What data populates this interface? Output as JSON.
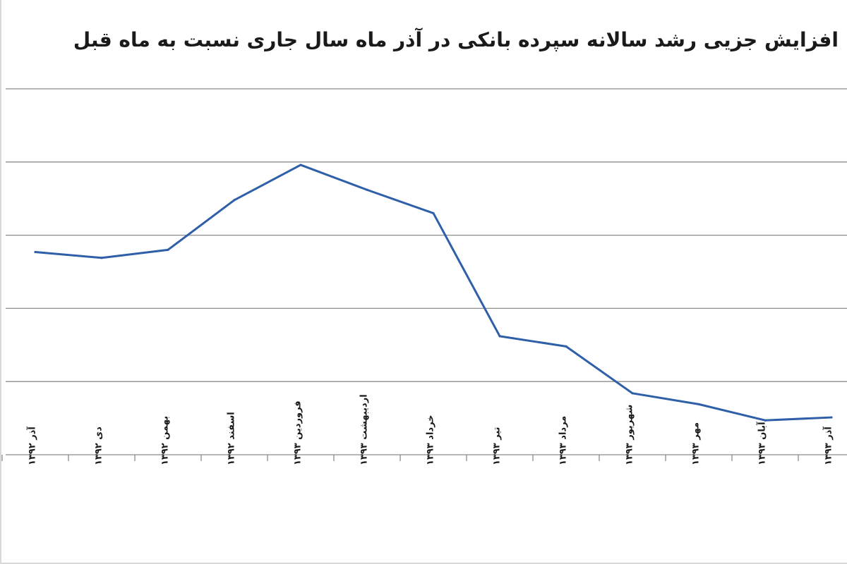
{
  "title": "افزایش جزیی رشد سالانه سپرده بانکی در آذر ماه سال جاری نسبت به ماه قبل",
  "chart_data": {
    "type": "line",
    "title": "افزایش جزیی رشد سالانه سپرده بانکی در آذر ماه سال جاری نسبت به ماه قبل",
    "xlabel": "",
    "ylabel": "",
    "categories": [
      "آذر ۱۳۹۲",
      "دی ۱۳۹۲",
      "بهمن ۱۳۹۲",
      "اسفند ۱۳۹۲",
      "فروردین ۱۳۹۳",
      "اردیبهشت ۱۳۹۳",
      "خرداد ۱۳۹۳",
      "تیر ۱۳۹۳",
      "مرداد ۱۳۹۳",
      "شهریور ۱۳۹۳",
      "مهر ۱۳۹۳",
      "آبان ۱۳۹۳",
      "آذر ۱۳۹۳"
    ],
    "series": [
      {
        "values": [
          2.77,
          2.69,
          2.8,
          3.48,
          3.96,
          3.62,
          3.3,
          1.62,
          1.48,
          0.84,
          0.69,
          0.47,
          0.51
        ]
      }
    ],
    "ylim": [
      0,
      5
    ],
    "grid": true,
    "legend": "none",
    "color": "#2e5fa8"
  }
}
